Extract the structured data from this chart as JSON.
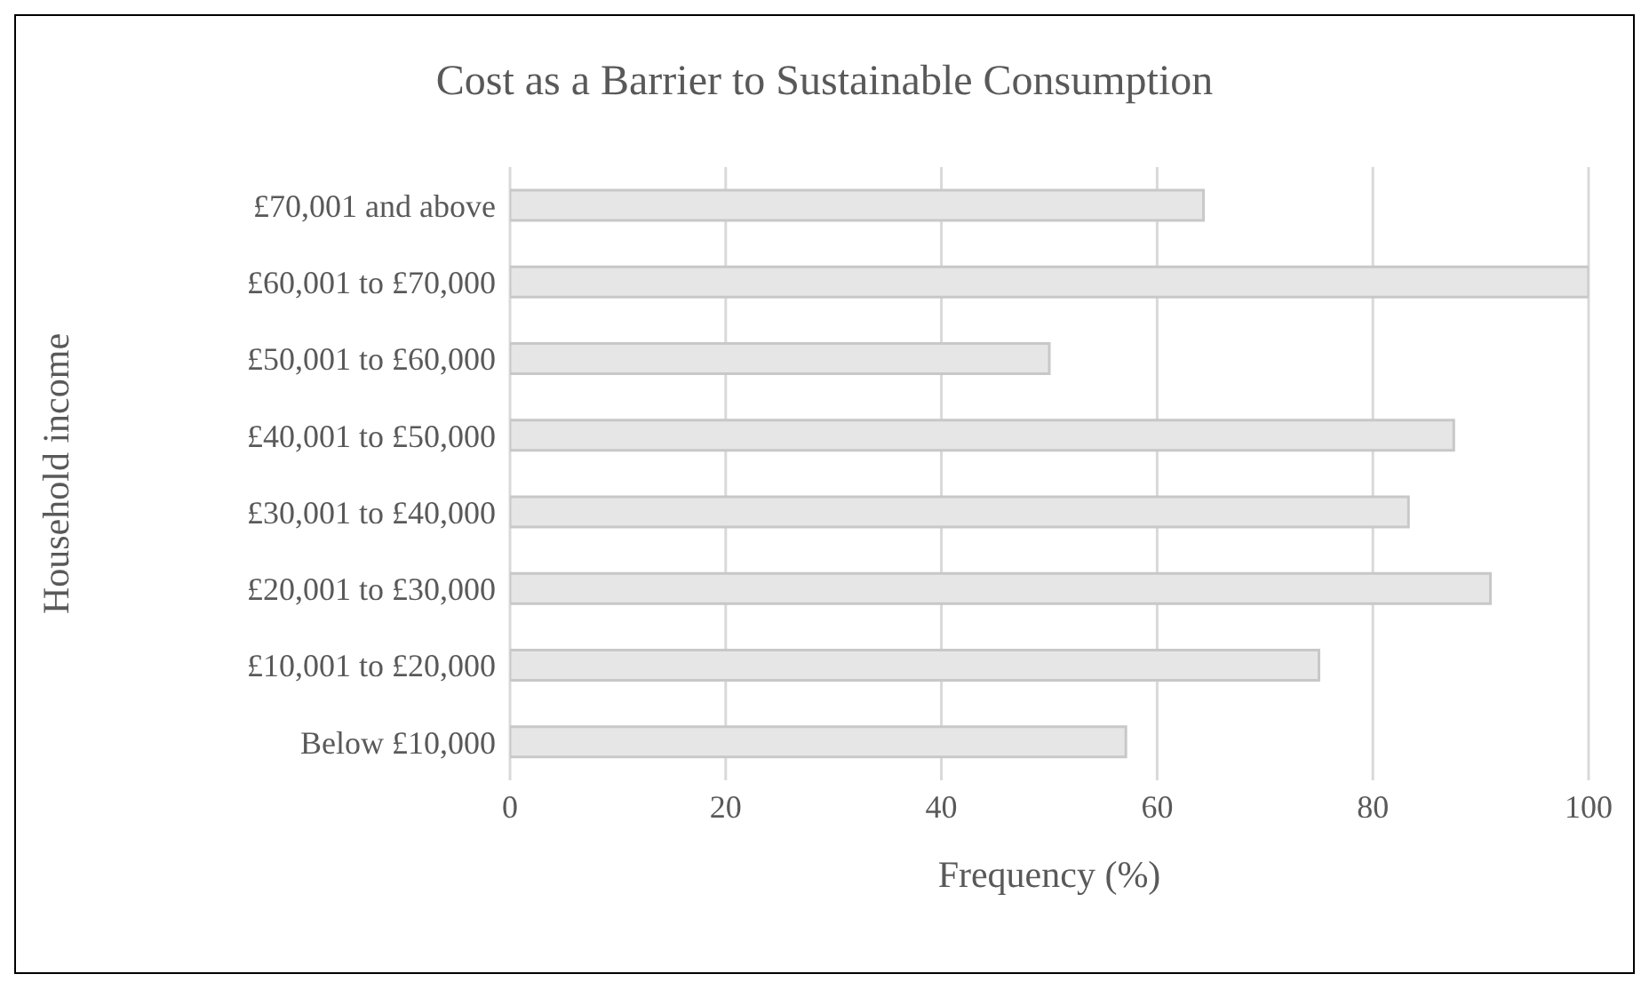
{
  "chart_data": {
    "type": "bar",
    "orientation": "horizontal",
    "title": "Cost as a Barrier to Sustainable Consumption",
    "xlabel": "Frequency (%)",
    "ylabel": "Household income",
    "categories": [
      "£70,001 and above",
      "£60,001 to £70,000",
      "£50,001 to £60,000",
      "£40,001 to £50,000",
      "£30,001 to £40,000",
      "£20,001 to £30,000",
      "£10,001 to £20,000",
      "Below £10,000"
    ],
    "values": [
      64.3,
      100,
      50,
      87.5,
      83.3,
      90.9,
      75,
      57.1
    ],
    "color": "#e6e6e6",
    "xlim": [
      0,
      100
    ],
    "xticks": [
      0,
      20,
      40,
      60,
      80,
      100
    ],
    "grid": "x"
  }
}
